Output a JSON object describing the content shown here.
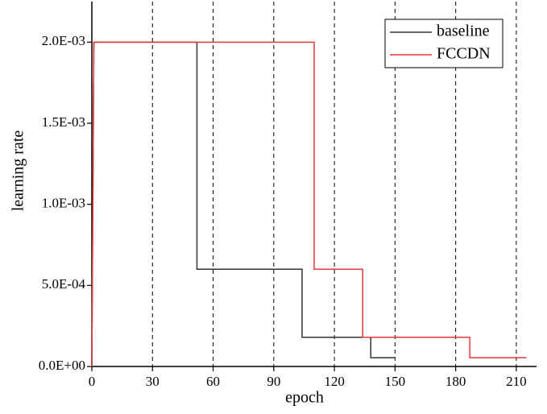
{
  "chart_data": {
    "type": "line",
    "xlabel": "epoch",
    "ylabel": "learning rate",
    "xlim": [
      0,
      220
    ],
    "ylim": [
      0,
      0.00225
    ],
    "xticks": [
      0,
      30,
      60,
      90,
      120,
      150,
      180,
      210
    ],
    "yticks": [
      {
        "value": 0,
        "label": "0.0E+00"
      },
      {
        "value": 0.0005,
        "label": "5.0E-04"
      },
      {
        "value": 0.001,
        "label": "1.0E-03"
      },
      {
        "value": 0.0015,
        "label": "1.5E-03"
      },
      {
        "value": 0.002,
        "label": "2.0E-03"
      }
    ],
    "grid": true,
    "legend": "upper right",
    "series": [
      {
        "name": "baseline",
        "color": "#333333",
        "x": [
          0,
          1,
          52,
          52,
          104,
          104,
          138,
          138,
          150
        ],
        "values": [
          0,
          0.002,
          0.002,
          0.0006,
          0.0006,
          0.00018,
          0.00018,
          5.4e-05,
          5.4e-05
        ]
      },
      {
        "name": "FCCDN",
        "color": "#e8383d",
        "x": [
          0,
          1,
          110,
          110,
          134,
          134,
          187,
          187,
          215
        ],
        "values": [
          0,
          0.002,
          0.002,
          0.0006,
          0.0006,
          0.00018,
          0.00018,
          5.4e-05,
          5.4e-05
        ]
      }
    ]
  }
}
